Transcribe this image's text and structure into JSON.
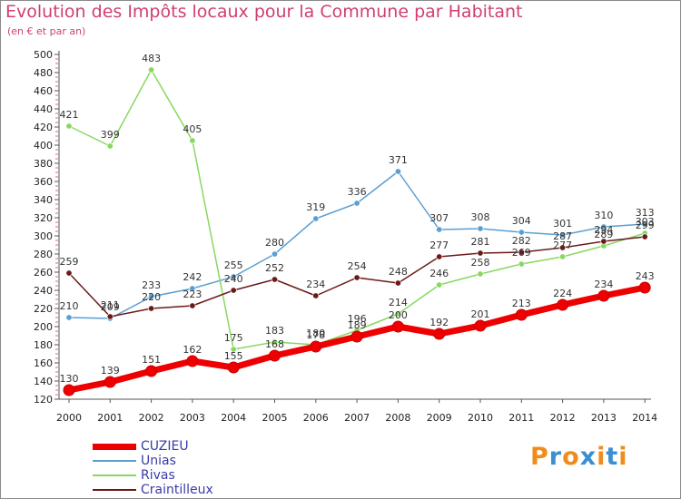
{
  "chart_data": {
    "type": "line",
    "title": "Evolution des Impôts locaux pour la Commune par Habitant",
    "subtitle": "(en € et par an)",
    "x": [
      "2000",
      "2001",
      "2002",
      "2003",
      "2004",
      "2005",
      "2006",
      "2007",
      "2008",
      "2009",
      "2010",
      "2011",
      "2012",
      "2013",
      "2014"
    ],
    "ylim": [
      120,
      500
    ],
    "yticks": [
      120,
      140,
      160,
      180,
      200,
      220,
      240,
      260,
      280,
      300,
      320,
      340,
      360,
      380,
      400,
      420,
      440,
      460,
      480,
      500
    ],
    "grid": false,
    "legend_position": "bottom-left",
    "series": [
      {
        "name": "CUZIEU",
        "color": "#ee0000",
        "values": [
          130,
          139,
          151,
          162,
          155,
          168,
          178,
          189,
          200,
          192,
          201,
          213,
          224,
          234,
          243
        ],
        "labels": [
          "130",
          "139",
          "151",
          "162",
          "155",
          "168",
          "178",
          "189",
          "200",
          "192",
          "201",
          "213",
          "224",
          "234",
          "243"
        ]
      },
      {
        "name": "Unias",
        "color": "#5a9fd4",
        "values": [
          210,
          209,
          233,
          242,
          255,
          280,
          319,
          336,
          371,
          307,
          308,
          304,
          301,
          310,
          313
        ],
        "labels": [
          "210",
          "209",
          "233",
          "242",
          "255",
          "280",
          "319",
          "336",
          "371",
          "307",
          "308",
          "304",
          "301",
          "310",
          "313"
        ]
      },
      {
        "name": "Rivas",
        "color": "#88d860",
        "values": [
          421,
          399,
          483,
          405,
          175,
          183,
          180,
          196,
          214,
          246,
          258,
          269,
          277,
          289,
          303
        ],
        "labels": [
          "421",
          "399",
          "483",
          "405",
          "175",
          "183",
          "180",
          "196",
          "214",
          "246",
          "258",
          "269",
          "277",
          "289",
          "303"
        ]
      },
      {
        "name": "Craintilleux",
        "color": "#6b1a1a",
        "values": [
          259,
          211,
          220,
          223,
          240,
          252,
          234,
          254,
          248,
          277,
          281,
          282,
          287,
          294,
          299
        ],
        "labels": [
          "259",
          "211",
          "220",
          "223",
          "240",
          "252",
          "234",
          "254",
          "248",
          "277",
          "281",
          "282",
          "287",
          "294",
          "299"
        ]
      }
    ]
  },
  "logo": {
    "text": "Proxiti",
    "colors": [
      "#f08c1c",
      "#3a8fd0",
      "#f08c1c",
      "#3a8fd0",
      "#f08c1c",
      "#3a8fd0",
      "#f08c1c"
    ]
  }
}
